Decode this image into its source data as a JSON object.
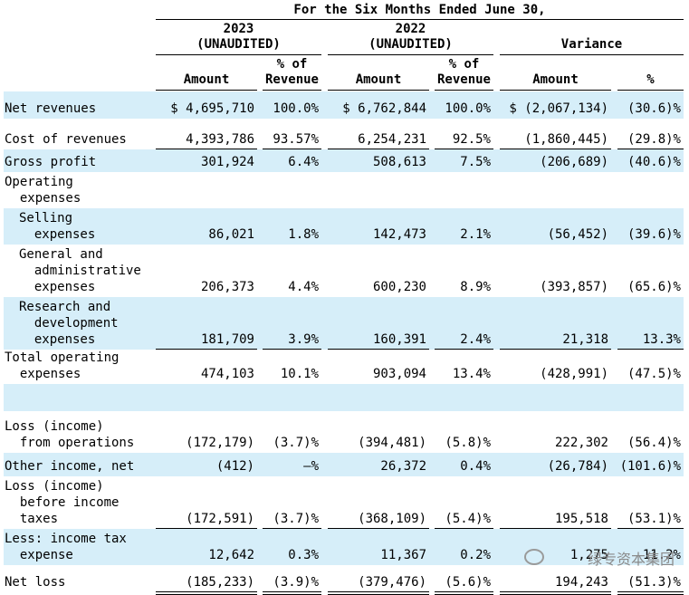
{
  "header": {
    "period": "For the Six Months Ended June 30,",
    "year_2023": "2023",
    "year_2023_sub": "(UNAUDITED)",
    "year_2022": "2022",
    "year_2022_sub": "(UNAUDITED)",
    "variance": "Variance",
    "col_amount": "Amount",
    "col_pct_revenue_line1": "% of",
    "col_pct_revenue_line2": "Revenue",
    "col_pct": "%"
  },
  "rows": [
    {
      "label": [
        "Net revenues"
      ],
      "indent": 0,
      "shaded": true,
      "cells": [
        "$ 4,695,710",
        "100.0%",
        "$ 6,762,844",
        "100.0%",
        "$ (2,067,134)",
        "(30.6)%"
      ]
    },
    {
      "label": [
        "Cost of revenues"
      ],
      "indent": 0,
      "shaded": false,
      "cells": [
        "4,393,786",
        "93.57%",
        "6,254,231",
        "92.5%",
        "(1,860,445)",
        "(29.8)%"
      ]
    },
    {
      "label": [
        "Gross profit"
      ],
      "indent": 0,
      "shaded": true,
      "cells": [
        "301,924",
        "6.4%",
        "508,613",
        "7.5%",
        "(206,689)",
        "(40.6)%"
      ]
    },
    {
      "label": [
        "Operating",
        "  expenses"
      ],
      "indent": 0,
      "shaded": false,
      "cells": [
        "",
        "",
        "",
        "",
        "",
        ""
      ]
    },
    {
      "label": [
        "Selling",
        "  expenses"
      ],
      "indent": 1,
      "shaded": true,
      "cells": [
        "86,021",
        "1.8%",
        "142,473",
        "2.1%",
        "(56,452)",
        "(39.6)%"
      ]
    },
    {
      "label": [
        "General and",
        "  administrative",
        "  expenses"
      ],
      "indent": 1,
      "shaded": false,
      "cells": [
        "206,373",
        "4.4%",
        "600,230",
        "8.9%",
        "(393,857)",
        "(65.6)%"
      ]
    },
    {
      "label": [
        "Research and",
        "  development",
        "  expenses"
      ],
      "indent": 1,
      "shaded": true,
      "cells": [
        "181,709",
        "3.9%",
        "160,391",
        "2.4%",
        "21,318",
        "13.3%"
      ]
    },
    {
      "label": [
        "Total operating",
        "  expenses"
      ],
      "indent": 0,
      "shaded": false,
      "cells": [
        "474,103",
        "10.1%",
        "903,094",
        "13.4%",
        "(428,991)",
        "(47.5)%"
      ]
    },
    {
      "label": [
        ""
      ],
      "indent": 0,
      "shaded": true,
      "cells": [
        "",
        "",
        "",
        "",
        "",
        ""
      ]
    },
    {
      "label": [
        "Loss (income)",
        "  from operations"
      ],
      "indent": 0,
      "shaded": false,
      "cells": [
        "(172,179)",
        "(3.7)%",
        "(394,481)",
        "(5.8)%",
        "222,302",
        "(56.4)%"
      ]
    },
    {
      "label": [
        "Other income, net"
      ],
      "indent": 0,
      "shaded": true,
      "cells": [
        "(412)",
        "—%",
        "26,372",
        "0.4%",
        "(26,784)",
        "(101.6)%"
      ]
    },
    {
      "label": [
        "Loss (income)",
        "  before income",
        "  taxes"
      ],
      "indent": 0,
      "shaded": false,
      "cells": [
        "(172,591)",
        "(3.7)%",
        "(368,109)",
        "(5.4)%",
        "195,518",
        "(53.1)%"
      ]
    },
    {
      "label": [
        "Less: income tax",
        "  expense"
      ],
      "indent": 0,
      "shaded": true,
      "cells": [
        "12,642",
        "0.3%",
        "11,367",
        "0.2%",
        "1,275",
        "11.2%"
      ]
    },
    {
      "label": [
        "Net loss"
      ],
      "indent": 0,
      "shaded": false,
      "cells": [
        "(185,233)",
        "(3.9)%",
        "(379,476)",
        "(5.6)%",
        "194,243",
        "(51.3)%"
      ]
    }
  ],
  "watermark": "绿专资本集团"
}
